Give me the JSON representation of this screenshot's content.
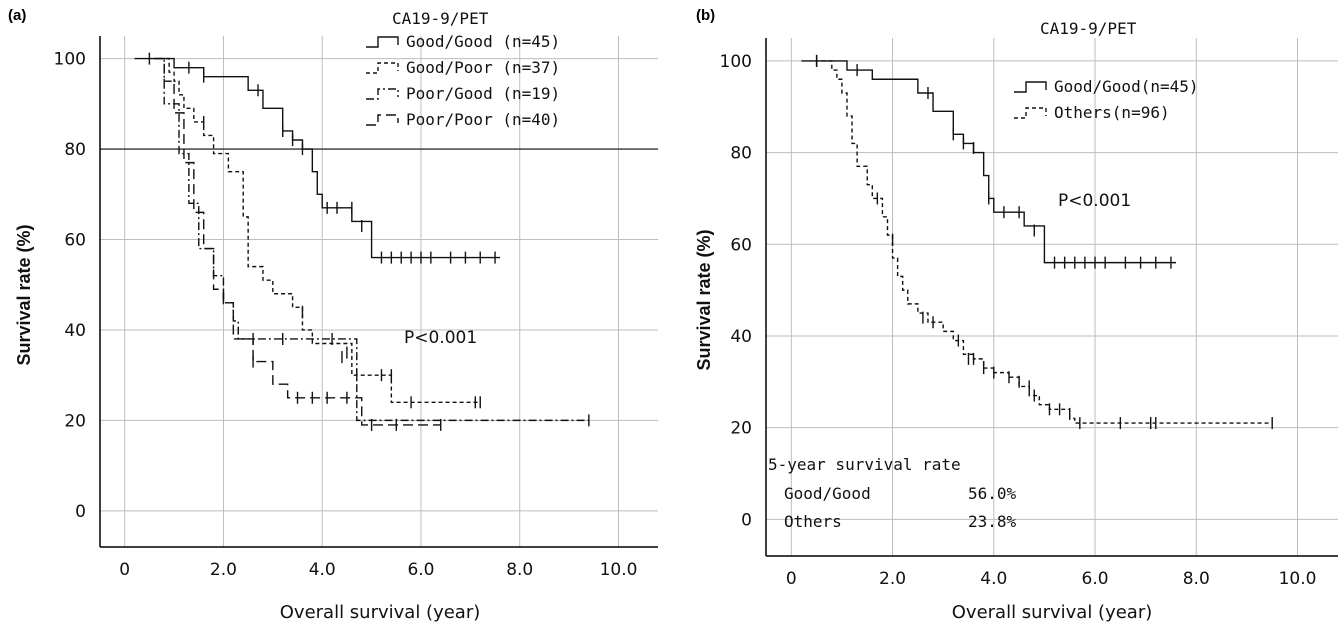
{
  "chart_data": [
    {
      "type": "line",
      "panel": "(a)",
      "xlabel": "Overall survival (year)",
      "ylabel": "Survival rate (%)",
      "xlim": [
        -0.5,
        10.8
      ],
      "ylim": [
        -8,
        105
      ],
      "x_ticks": [
        "0",
        "2.0",
        "4.0",
        "6.0",
        "8.0",
        "10.0"
      ],
      "y_ticks": [
        "0",
        "20",
        "40",
        "60",
        "80",
        "100"
      ],
      "grid": true,
      "reference_line_y": 80,
      "legend_title": "CA19-9/PET",
      "legend_position": "top-right",
      "annotation": "P<0.001",
      "series": [
        {
          "name": "Good/Good (n=45)",
          "style": "solid",
          "steps": [
            [
              0.2,
              100
            ],
            [
              0.8,
              100
            ],
            [
              1.0,
              98
            ],
            [
              1.6,
              96
            ],
            [
              2.5,
              93
            ],
            [
              2.8,
              89
            ],
            [
              3.2,
              84
            ],
            [
              3.4,
              82
            ],
            [
              3.6,
              80
            ],
            [
              3.8,
              75
            ],
            [
              3.9,
              70
            ],
            [
              4.0,
              67
            ],
            [
              4.6,
              64
            ],
            [
              5.0,
              56
            ],
            [
              7.6,
              56
            ]
          ],
          "censor": [
            [
              0.5,
              100
            ],
            [
              1.3,
              98
            ],
            [
              1.6,
              96
            ],
            [
              2.7,
              93
            ],
            [
              3.2,
              84
            ],
            [
              3.4,
              82
            ],
            [
              3.6,
              80
            ],
            [
              4.1,
              67
            ],
            [
              4.3,
              67
            ],
            [
              4.6,
              67
            ],
            [
              4.8,
              63
            ],
            [
              5.2,
              56
            ],
            [
              5.4,
              56
            ],
            [
              5.6,
              56
            ],
            [
              5.8,
              56
            ],
            [
              6.0,
              56
            ],
            [
              6.2,
              56
            ],
            [
              6.6,
              56
            ],
            [
              6.9,
              56
            ],
            [
              7.2,
              56
            ],
            [
              7.5,
              56
            ]
          ]
        },
        {
          "name": "Good/Poor  (n=37)",
          "style": "dashed-short",
          "steps": [
            [
              0.7,
              100
            ],
            [
              0.9,
              97
            ],
            [
              1.0,
              95
            ],
            [
              1.1,
              92
            ],
            [
              1.2,
              89
            ],
            [
              1.4,
              86
            ],
            [
              1.6,
              83
            ],
            [
              1.8,
              79
            ],
            [
              2.1,
              75
            ],
            [
              2.4,
              65
            ],
            [
              2.5,
              54
            ],
            [
              2.8,
              51
            ],
            [
              3.0,
              48
            ],
            [
              3.4,
              45
            ],
            [
              3.6,
              40
            ],
            [
              3.8,
              37
            ],
            [
              4.6,
              30
            ],
            [
              5.3,
              30
            ],
            [
              5.4,
              24
            ],
            [
              7.2,
              24
            ]
          ],
          "censor": [
            [
              1.6,
              86
            ],
            [
              3.6,
              44
            ],
            [
              4.4,
              34
            ],
            [
              4.7,
              30
            ],
            [
              5.2,
              30
            ],
            [
              5.4,
              30
            ],
            [
              5.8,
              24
            ],
            [
              7.1,
              24
            ],
            [
              7.2,
              24
            ]
          ]
        },
        {
          "name": "Poor/Good  (n=19)",
          "style": "dash-dot",
          "steps": [
            [
              0.6,
              100
            ],
            [
              0.8,
              90
            ],
            [
              1.1,
              79
            ],
            [
              1.3,
              68
            ],
            [
              1.5,
              58
            ],
            [
              1.8,
              52
            ],
            [
              2.0,
              46
            ],
            [
              2.2,
              42
            ],
            [
              2.3,
              38
            ],
            [
              4.5,
              38
            ],
            [
              4.7,
              20
            ],
            [
              9.4,
              20
            ]
          ],
          "censor": [
            [
              2.6,
              38
            ],
            [
              3.2,
              38
            ],
            [
              4.2,
              38
            ],
            [
              4.5,
              35
            ],
            [
              9.4,
              20
            ]
          ]
        },
        {
          "name": "Poor/Poor   (n=40)",
          "style": "dashed-long",
          "steps": [
            [
              0.6,
              100
            ],
            [
              0.8,
              95
            ],
            [
              1.0,
              88
            ],
            [
              1.2,
              77
            ],
            [
              1.4,
              66
            ],
            [
              1.6,
              58
            ],
            [
              1.8,
              49
            ],
            [
              2.0,
              46
            ],
            [
              2.2,
              38
            ],
            [
              2.6,
              33
            ],
            [
              3.0,
              28
            ],
            [
              3.3,
              25
            ],
            [
              4.6,
              25
            ],
            [
              4.8,
              19
            ],
            [
              6.4,
              19
            ]
          ],
          "censor": [
            [
              2.0,
              47
            ],
            [
              2.6,
              33
            ],
            [
              3.5,
              25
            ],
            [
              3.8,
              25
            ],
            [
              4.1,
              25
            ],
            [
              4.5,
              25
            ],
            [
              5.0,
              19
            ],
            [
              5.5,
              19
            ],
            [
              6.4,
              19
            ]
          ]
        }
      ]
    },
    {
      "type": "line",
      "panel": "(b)",
      "xlabel": "Overall survival (year)",
      "ylabel": "Survival rate (%)",
      "xlim": [
        -0.5,
        10.8
      ],
      "ylim": [
        -8,
        105
      ],
      "x_ticks": [
        "0",
        "2.0",
        "4.0",
        "6.0",
        "8.0",
        "10.0"
      ],
      "y_ticks": [
        "0",
        "20",
        "40",
        "60",
        "80",
        "100"
      ],
      "grid": true,
      "legend_title": "CA19-9/PET",
      "legend_position": "top-right",
      "annotation": "P<0.001",
      "survival_box": {
        "title": "5-year survival rate",
        "rows": [
          {
            "label": "Good/Good",
            "value": "56.0%"
          },
          {
            "label": "Others",
            "value": "23.8%"
          }
        ]
      },
      "series": [
        {
          "name": "Good/Good(n=45)",
          "style": "solid",
          "steps": [
            [
              0.2,
              100
            ],
            [
              1.0,
              100
            ],
            [
              1.1,
              98
            ],
            [
              1.6,
              96
            ],
            [
              2.5,
              93
            ],
            [
              2.8,
              89
            ],
            [
              3.2,
              84
            ],
            [
              3.4,
              82
            ],
            [
              3.6,
              80
            ],
            [
              3.8,
              75
            ],
            [
              3.9,
              70
            ],
            [
              4.0,
              67
            ],
            [
              4.6,
              64
            ],
            [
              5.0,
              56
            ],
            [
              7.6,
              56
            ]
          ],
          "censor": [
            [
              0.5,
              100
            ],
            [
              1.3,
              98
            ],
            [
              2.7,
              93
            ],
            [
              3.2,
              84
            ],
            [
              3.4,
              82
            ],
            [
              3.6,
              81
            ],
            [
              3.9,
              70
            ],
            [
              4.2,
              67
            ],
            [
              4.5,
              67
            ],
            [
              4.8,
              63
            ],
            [
              5.2,
              56
            ],
            [
              5.4,
              56
            ],
            [
              5.6,
              56
            ],
            [
              5.8,
              56
            ],
            [
              6.0,
              56
            ],
            [
              6.2,
              56
            ],
            [
              6.6,
              56
            ],
            [
              6.9,
              56
            ],
            [
              7.2,
              56
            ],
            [
              7.5,
              56
            ]
          ]
        },
        {
          "name": "Others(n=96)",
          "style": "dashed-short",
          "steps": [
            [
              0.6,
              100
            ],
            [
              0.8,
              98
            ],
            [
              0.9,
              96
            ],
            [
              1.0,
              93
            ],
            [
              1.1,
              88
            ],
            [
              1.2,
              82
            ],
            [
              1.3,
              77
            ],
            [
              1.5,
              73
            ],
            [
              1.6,
              70
            ],
            [
              1.8,
              66
            ],
            [
              1.9,
              62
            ],
            [
              2.0,
              57
            ],
            [
              2.1,
              53
            ],
            [
              2.2,
              50
            ],
            [
              2.3,
              47
            ],
            [
              2.5,
              45
            ],
            [
              2.7,
              43
            ],
            [
              3.0,
              41
            ],
            [
              3.2,
              39
            ],
            [
              3.4,
              36
            ],
            [
              3.6,
              35
            ],
            [
              3.8,
              33
            ],
            [
              4.0,
              32
            ],
            [
              4.3,
              31
            ],
            [
              4.5,
              29
            ],
            [
              4.7,
              27
            ],
            [
              4.9,
              25
            ],
            [
              5.1,
              24
            ],
            [
              5.5,
              22
            ],
            [
              5.6,
              21
            ],
            [
              9.5,
              21
            ]
          ],
          "censor": [
            [
              0.5,
              100
            ],
            [
              1.7,
              70
            ],
            [
              2.0,
              61
            ],
            [
              2.6,
              44
            ],
            [
              2.8,
              43
            ],
            [
              3.3,
              39
            ],
            [
              3.5,
              35
            ],
            [
              3.6,
              35
            ],
            [
              3.8,
              33
            ],
            [
              4.0,
              32
            ],
            [
              4.3,
              31
            ],
            [
              4.5,
              30
            ],
            [
              4.7,
              29
            ],
            [
              4.8,
              27
            ],
            [
              5.1,
              24
            ],
            [
              5.3,
              24
            ],
            [
              5.5,
              23
            ],
            [
              5.7,
              21
            ],
            [
              6.5,
              21
            ],
            [
              7.1,
              21
            ],
            [
              7.2,
              21
            ],
            [
              9.5,
              21
            ]
          ]
        }
      ]
    }
  ]
}
